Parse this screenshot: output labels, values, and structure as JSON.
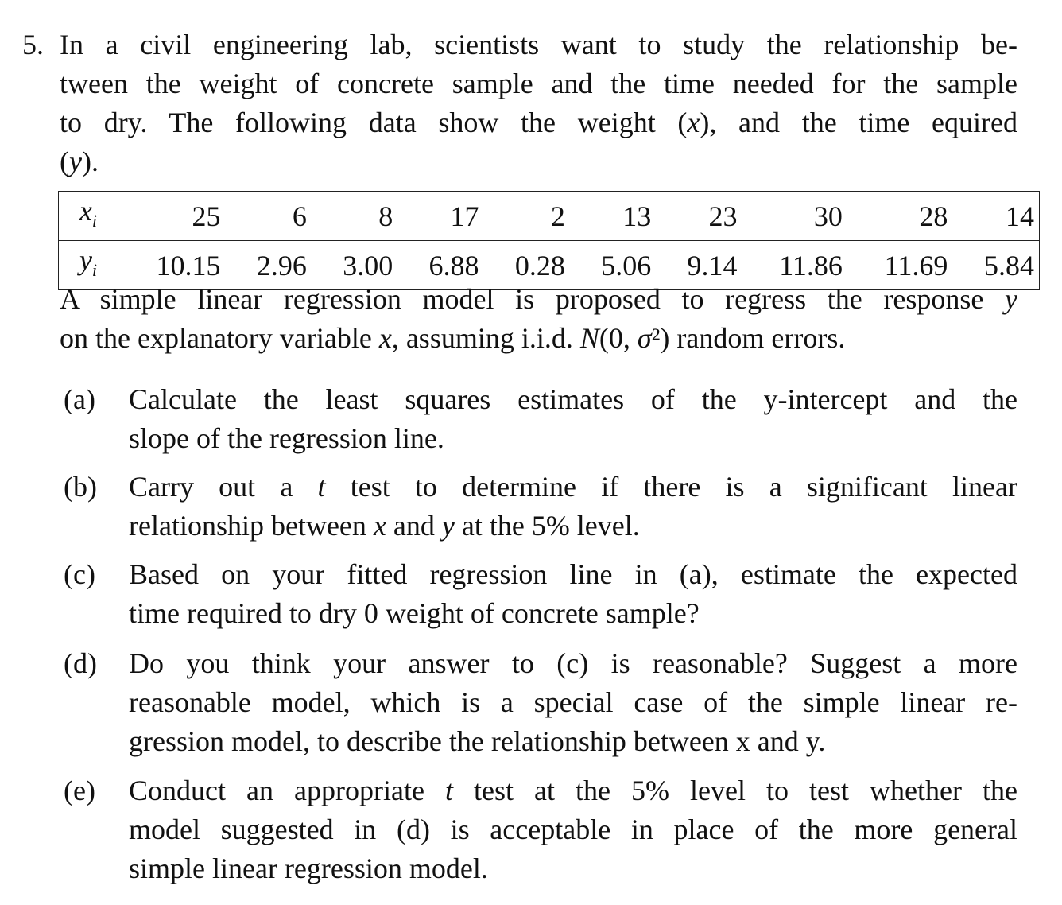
{
  "problem": {
    "number": "5.",
    "intro_lines": [
      [
        "In a civil engineering lab, scientists want to study the relationship be-"
      ],
      [
        "tween the weight of concrete sample and the time needed for the sample"
      ],
      [
        "to dry. The following data show the weight (",
        {
          "m": "x"
        },
        "), and the time equired"
      ],
      [
        "(",
        {
          "m": "y"
        },
        ")."
      ]
    ],
    "table": {
      "x_label": "x",
      "x_sub": "i",
      "y_label": "y",
      "y_sub": "i",
      "x": [
        "25",
        "6",
        "8",
        "17",
        "2",
        "13",
        "23",
        "30",
        "28",
        "14"
      ],
      "y": [
        "10.15",
        "2.96",
        "3.00",
        "6.88",
        "0.28",
        "5.06",
        "9.14",
        "11.86",
        "11.69",
        "5.84"
      ]
    },
    "model_lines": [
      [
        "A simple linear regression model is proposed to regress the response ",
        {
          "m": "y"
        }
      ],
      [
        "on the explanatory variable ",
        {
          "m": "x"
        },
        ", assuming i.i.d. ",
        {
          "m": "N"
        },
        "(0, ",
        {
          "m": "σ"
        },
        "²) random errors."
      ]
    ],
    "parts": [
      {
        "label": "(a)",
        "lines": [
          [
            "Calculate the least squares estimates of the y-intercept and the"
          ],
          [
            "slope of the regression line."
          ]
        ]
      },
      {
        "label": "(b)",
        "lines": [
          [
            "Carry out a ",
            {
              "m": "t"
            },
            " test to determine if there is a significant linear"
          ],
          [
            "relationship between ",
            {
              "m": "x"
            },
            " and ",
            {
              "m": "y"
            },
            " at the 5% level."
          ]
        ]
      },
      {
        "label": "(c)",
        "lines": [
          [
            "Based on your fitted regression line in (a), estimate the expected"
          ],
          [
            "time required to dry 0 weight of concrete sample?"
          ]
        ]
      },
      {
        "label": "(d)",
        "lines": [
          [
            "Do you think your answer to (c) is reasonable? Suggest a more"
          ],
          [
            "reasonable model, which is a special case of the simple linear re-"
          ],
          [
            "gression model, to describe the relationship between x and y."
          ]
        ]
      },
      {
        "label": "(e)",
        "lines": [
          [
            "Conduct an appropriate ",
            {
              "m": "t"
            },
            " test at the 5% level to test whether the"
          ],
          [
            "model suggested in (d) is acceptable in place of the more general"
          ],
          [
            "simple linear regression model."
          ]
        ]
      }
    ]
  }
}
